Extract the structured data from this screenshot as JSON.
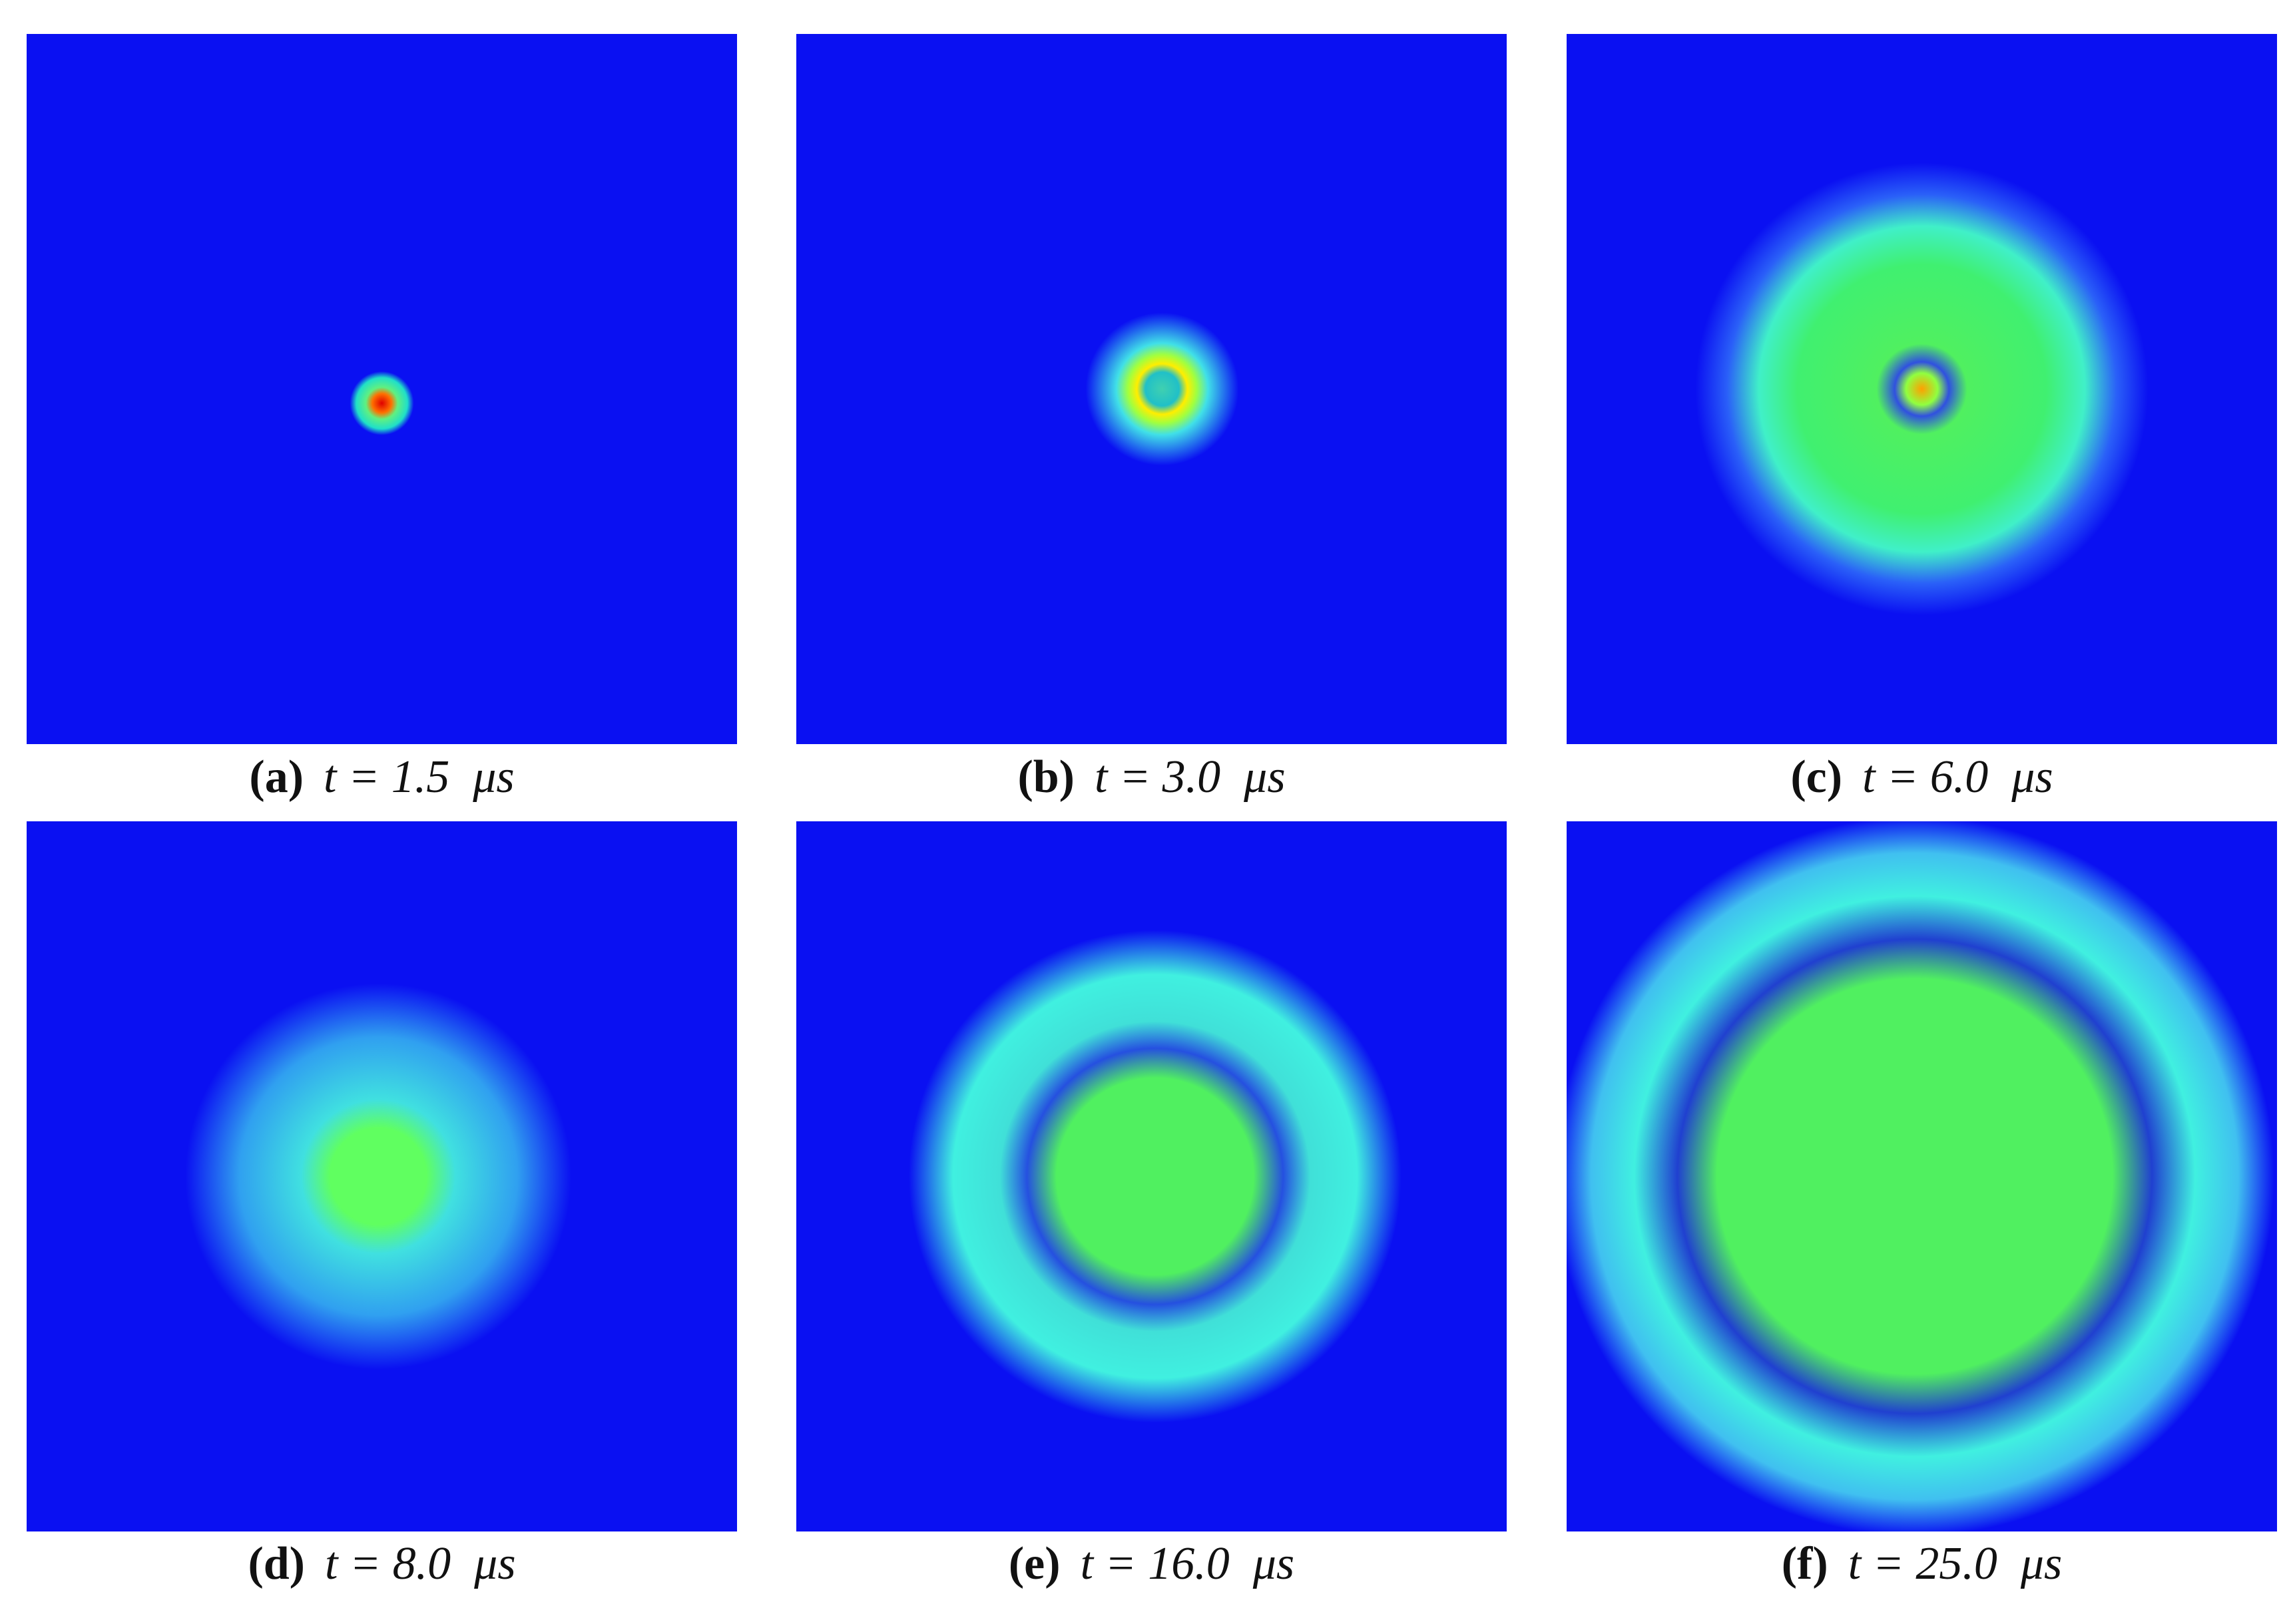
{
  "panels": [
    {
      "tag": "(a)",
      "caption": "t = 1.5  μs"
    },
    {
      "tag": "(b)",
      "caption": "t = 3.0  μs"
    },
    {
      "tag": "(c)",
      "caption": "t = 6.0  μs"
    },
    {
      "tag": "(d)",
      "caption": "t = 8.0  μs"
    },
    {
      "tag": "(e)",
      "caption": "t = 16.0  μs"
    },
    {
      "tag": "(f)",
      "caption": "t = 25.0  μs"
    }
  ]
}
